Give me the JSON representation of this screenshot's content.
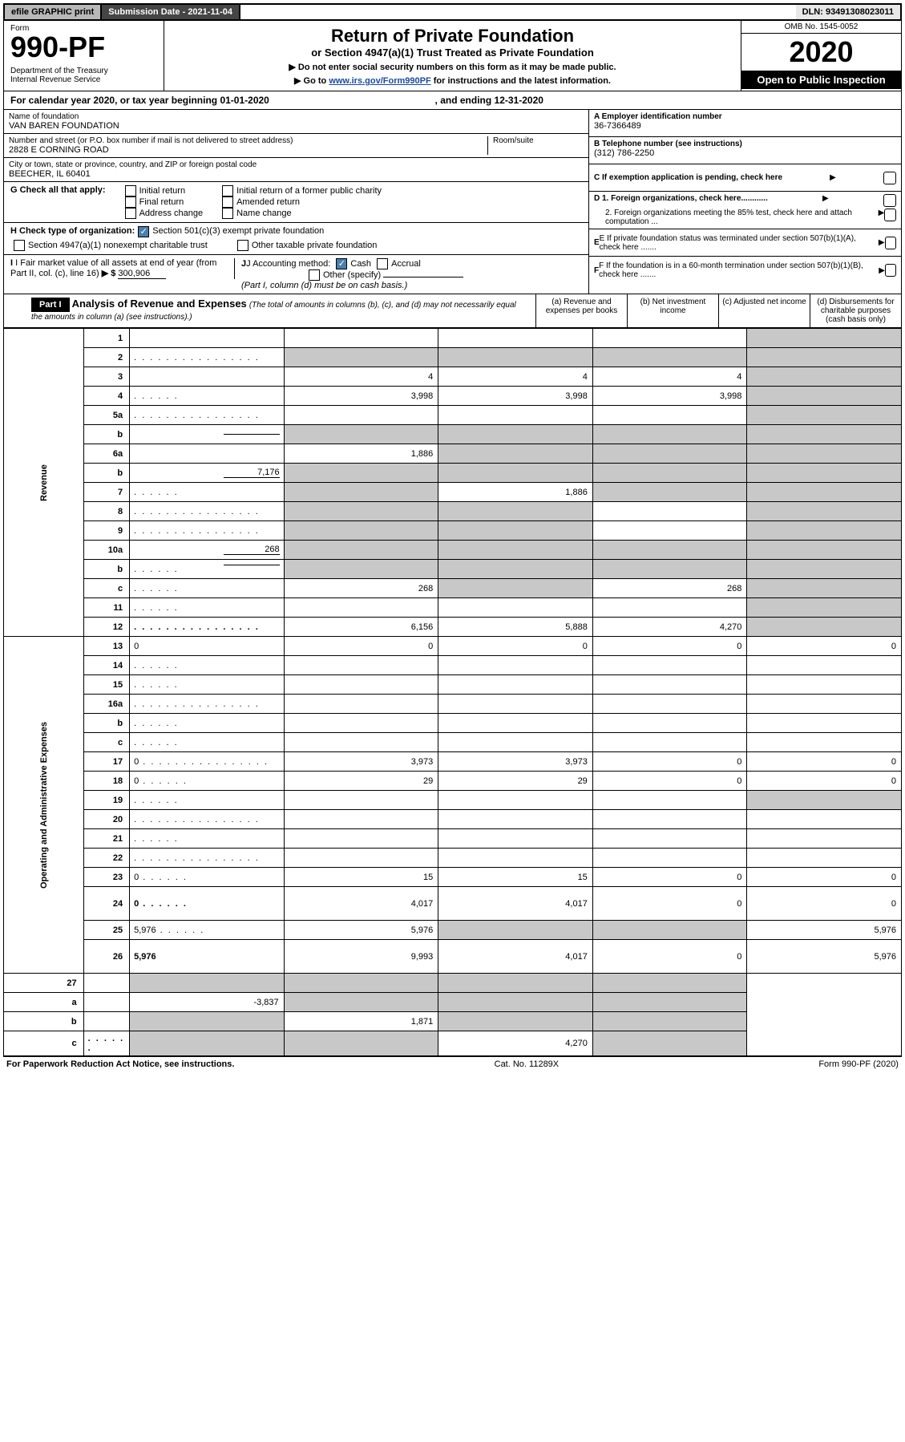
{
  "top": {
    "efile": "efile GRAPHIC print",
    "sub_label": "Submission Date - 2021-11-04",
    "dln": "DLN: 93491308023011"
  },
  "header": {
    "form_label": "Form",
    "form_number": "990-PF",
    "dept": "Department of the Treasury\nInternal Revenue Service",
    "title": "Return of Private Foundation",
    "subtitle": "or Section 4947(a)(1) Trust Treated as Private Foundation",
    "instr1": "▶ Do not enter social security numbers on this form as it may be made public.",
    "instr2_pre": "▶ Go to ",
    "instr2_link": "www.irs.gov/Form990PF",
    "instr2_post": " for instructions and the latest information.",
    "omb": "OMB No. 1545-0052",
    "year": "2020",
    "inspect": "Open to Public Inspection"
  },
  "cal": {
    "text_pre": "For calendar year 2020, or tax year beginning ",
    "begin": "01-01-2020",
    "mid": " , and ending ",
    "end": "12-31-2020"
  },
  "entity": {
    "name_label": "Name of foundation",
    "name": "VAN BAREN FOUNDATION",
    "addr_label": "Number and street (or P.O. box number if mail is not delivered to street address)",
    "addr": "2828 E CORNING ROAD",
    "room_label": "Room/suite",
    "city_label": "City or town, state or province, country, and ZIP or foreign postal code",
    "city": "BEECHER, IL  60401",
    "a_label": "A Employer identification number",
    "a_val": "36-7366489",
    "b_label": "B Telephone number (see instructions)",
    "b_val": "(312) 786-2250",
    "c_label": "C If exemption application is pending, check here",
    "d1": "D 1. Foreign organizations, check here............",
    "d2": "2. Foreign organizations meeting the 85% test, check here and attach computation ...",
    "e": "E If private foundation status was terminated under section 507(b)(1)(A), check here .......",
    "f": "F If the foundation is in a 60-month termination under section 507(b)(1)(B), check here ......."
  },
  "g": {
    "label": "G Check all that apply:",
    "opts": [
      "Initial return",
      "Final return",
      "Address change",
      "Initial return of a former public charity",
      "Amended return",
      "Name change"
    ]
  },
  "h": {
    "label": "H Check type of organization:",
    "opt1": "Section 501(c)(3) exempt private foundation",
    "opt2": "Section 4947(a)(1) nonexempt charitable trust",
    "opt3": "Other taxable private foundation"
  },
  "i": {
    "label": "I Fair market value of all assets at end of year (from Part II, col. (c), line 16)",
    "prefix": "▶ $",
    "value": "300,906"
  },
  "j": {
    "label": "J Accounting method:",
    "cash": "Cash",
    "accrual": "Accrual",
    "other": "Other (specify)",
    "note": "(Part I, column (d) must be on cash basis.)"
  },
  "part1": {
    "badge": "Part I",
    "title": "Analysis of Revenue and Expenses",
    "note": "(The total of amounts in columns (b), (c), and (d) may not necessarily equal the amounts in column (a) (see instructions).)",
    "col_a": "(a) Revenue and expenses per books",
    "col_b": "(b) Net investment income",
    "col_c": "(c) Adjusted net income",
    "col_d": "(d) Disbursements for charitable purposes (cash basis only)"
  },
  "sections": {
    "revenue": "Revenue",
    "opex": "Operating and Administrative Expenses"
  },
  "rows": [
    {
      "n": "1",
      "d": "",
      "a": "",
      "b": "",
      "c": "",
      "shade": [
        "d"
      ]
    },
    {
      "n": "2",
      "d": "",
      "dclass": "dots",
      "a": "",
      "b": "",
      "c": "",
      "shade": [
        "a",
        "b",
        "c",
        "d"
      ],
      "checked": true
    },
    {
      "n": "3",
      "d": "",
      "a": "4",
      "b": "4",
      "c": "4",
      "shade": [
        "d"
      ]
    },
    {
      "n": "4",
      "d": "",
      "dclass": "dotsS",
      "a": "3,998",
      "b": "3,998",
      "c": "3,998",
      "shade": [
        "d"
      ]
    },
    {
      "n": "5a",
      "d": "",
      "dclass": "dots",
      "a": "",
      "b": "",
      "c": "",
      "shade": [
        "d"
      ]
    },
    {
      "n": "b",
      "d": "",
      "a": "",
      "b": "",
      "c": "",
      "shade": [
        "a",
        "b",
        "c",
        "d"
      ],
      "inline": ""
    },
    {
      "n": "6a",
      "d": "",
      "a": "1,886",
      "b": "",
      "c": "",
      "shade": [
        "b",
        "c",
        "d"
      ]
    },
    {
      "n": "b",
      "d": "",
      "a": "",
      "b": "",
      "c": "",
      "shade": [
        "a",
        "b",
        "c",
        "d"
      ],
      "inline": "7,176"
    },
    {
      "n": "7",
      "d": "",
      "dclass": "dotsS",
      "a": "",
      "b": "1,886",
      "c": "",
      "shade": [
        "a",
        "c",
        "d"
      ]
    },
    {
      "n": "8",
      "d": "",
      "dclass": "dots",
      "a": "",
      "b": "",
      "c": "",
      "shade": [
        "a",
        "b",
        "d"
      ]
    },
    {
      "n": "9",
      "d": "",
      "dclass": "dots",
      "a": "",
      "b": "",
      "c": "",
      "shade": [
        "a",
        "b",
        "d"
      ]
    },
    {
      "n": "10a",
      "d": "",
      "a": "",
      "b": "",
      "c": "",
      "shade": [
        "a",
        "b",
        "c",
        "d"
      ],
      "inline": "268"
    },
    {
      "n": "b",
      "d": "",
      "dclass": "dotsS",
      "a": "",
      "b": "",
      "c": "",
      "shade": [
        "a",
        "b",
        "c",
        "d"
      ],
      "inline": ""
    },
    {
      "n": "c",
      "d": "",
      "dclass": "dotsS",
      "a": "268",
      "b": "",
      "c": "268",
      "shade": [
        "b",
        "d"
      ]
    },
    {
      "n": "11",
      "d": "",
      "dclass": "dotsS",
      "a": "",
      "b": "",
      "c": "",
      "shade": [
        "d"
      ]
    },
    {
      "n": "12",
      "d": "",
      "dclass": "dots",
      "bold": true,
      "a": "6,156",
      "b": "5,888",
      "c": "4,270",
      "shade": [
        "d"
      ]
    }
  ],
  "rows2": [
    {
      "n": "13",
      "d": "0",
      "a": "0",
      "b": "0",
      "c": "0"
    },
    {
      "n": "14",
      "d": "",
      "dclass": "dotsS",
      "a": "",
      "b": "",
      "c": ""
    },
    {
      "n": "15",
      "d": "",
      "dclass": "dotsS",
      "a": "",
      "b": "",
      "c": ""
    },
    {
      "n": "16a",
      "d": "",
      "dclass": "dots",
      "a": "",
      "b": "",
      "c": ""
    },
    {
      "n": "b",
      "d": "",
      "dclass": "dotsS",
      "a": "",
      "b": "",
      "c": ""
    },
    {
      "n": "c",
      "d": "",
      "dclass": "dotsS",
      "a": "",
      "b": "",
      "c": ""
    },
    {
      "n": "17",
      "d": "0",
      "dclass": "dots",
      "a": "3,973",
      "b": "3,973",
      "c": "0"
    },
    {
      "n": "18",
      "d": "0",
      "dclass": "dotsS",
      "a": "29",
      "b": "29",
      "c": "0"
    },
    {
      "n": "19",
      "d": "",
      "dclass": "dotsS",
      "a": "",
      "b": "",
      "c": "",
      "shade": [
        "d"
      ]
    },
    {
      "n": "20",
      "d": "",
      "dclass": "dots",
      "a": "",
      "b": "",
      "c": ""
    },
    {
      "n": "21",
      "d": "",
      "dclass": "dotsS",
      "a": "",
      "b": "",
      "c": ""
    },
    {
      "n": "22",
      "d": "",
      "dclass": "dots",
      "a": "",
      "b": "",
      "c": ""
    },
    {
      "n": "23",
      "d": "0",
      "dclass": "dotsS",
      "a": "15",
      "b": "15",
      "c": "0"
    },
    {
      "n": "24",
      "d": "0",
      "dclass": "dotsS",
      "bold": true,
      "a": "4,017",
      "b": "4,017",
      "c": "0",
      "tall": true
    },
    {
      "n": "25",
      "d": "5,976",
      "dclass": "dotsS",
      "a": "5,976",
      "b": "",
      "c": "",
      "shade": [
        "b",
        "c"
      ]
    },
    {
      "n": "26",
      "d": "5,976",
      "bold": true,
      "a": "9,993",
      "b": "4,017",
      "c": "0",
      "tall": true
    }
  ],
  "rows3": [
    {
      "n": "27",
      "d": "",
      "a": "",
      "b": "",
      "c": "",
      "shade": [
        "a",
        "b",
        "c",
        "d"
      ]
    },
    {
      "n": "a",
      "d": "",
      "bold": true,
      "a": "-3,837",
      "b": "",
      "c": "",
      "shade": [
        "b",
        "c",
        "d"
      ]
    },
    {
      "n": "b",
      "d": "",
      "bold": true,
      "a": "",
      "b": "1,871",
      "c": "",
      "shade": [
        "a",
        "c",
        "d"
      ]
    },
    {
      "n": "c",
      "d": "",
      "dclass": "dotsS",
      "bold": true,
      "a": "",
      "b": "",
      "c": "4,270",
      "shade": [
        "a",
        "b",
        "d"
      ]
    }
  ],
  "footer": {
    "left": "For Paperwork Reduction Act Notice, see instructions.",
    "mid": "Cat. No. 11289X",
    "right": "Form 990-PF (2020)"
  }
}
